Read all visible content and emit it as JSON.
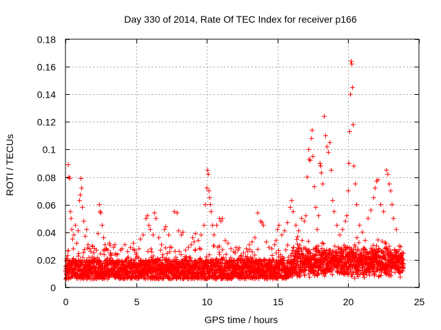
{
  "chart_data": {
    "type": "scatter",
    "title": "Day 330 of 2014, Rate Of TEC Index for receiver p166",
    "xlabel": "GPS time / hours",
    "ylabel": "ROTI / TECUs",
    "xlim": [
      0,
      25
    ],
    "ylim": [
      0,
      0.18
    ],
    "x_ticks": [
      0,
      5,
      10,
      15,
      20,
      25
    ],
    "x_tick_labels": [
      "0",
      "5",
      "10",
      "15",
      "20",
      "25"
    ],
    "y_ticks": [
      0,
      0.02,
      0.04,
      0.06,
      0.08,
      0.1,
      0.12,
      0.14,
      0.16,
      0.18
    ],
    "y_tick_labels": [
      "0",
      "0.02",
      "0.04",
      "0.06",
      "0.08",
      "0.1",
      "0.12",
      "0.14",
      "0.16",
      "0.18"
    ],
    "grid": true,
    "marker": "+",
    "color": "#ff0000",
    "x_data_range": [
      0,
      23.9
    ],
    "series": [
      {
        "name": "ROTI",
        "points": [
          [
            0.05,
            0.015
          ],
          [
            0.1,
            0.021
          ],
          [
            0.15,
            0.013
          ],
          [
            0.2,
            0.089
          ],
          [
            0.25,
            0.08
          ],
          [
            0.3,
            0.079
          ],
          [
            0.35,
            0.055
          ],
          [
            0.4,
            0.05
          ],
          [
            0.45,
            0.042
          ],
          [
            0.5,
            0.035
          ],
          [
            0.55,
            0.028
          ],
          [
            0.6,
            0.038
          ],
          [
            0.7,
            0.045
          ],
          [
            0.8,
            0.032
          ],
          [
            0.9,
            0.041
          ],
          [
            1.0,
            0.063
          ],
          [
            1.05,
            0.067
          ],
          [
            1.1,
            0.079
          ],
          [
            1.15,
            0.072
          ],
          [
            1.2,
            0.058
          ],
          [
            1.3,
            0.048
          ],
          [
            1.4,
            0.037
          ],
          [
            1.5,
            0.042
          ],
          [
            1.6,
            0.031
          ],
          [
            1.7,
            0.028
          ],
          [
            1.8,
            0.026
          ],
          [
            1.9,
            0.022
          ],
          [
            2.0,
            0.025
          ],
          [
            2.1,
            0.02
          ],
          [
            2.2,
            0.027
          ],
          [
            2.3,
            0.039
          ],
          [
            2.4,
            0.06
          ],
          [
            2.45,
            0.055
          ],
          [
            2.5,
            0.054
          ],
          [
            2.6,
            0.045
          ],
          [
            2.7,
            0.036
          ],
          [
            2.8,
            0.031
          ],
          [
            2.9,
            0.028
          ],
          [
            3.0,
            0.027
          ],
          [
            3.1,
            0.032
          ],
          [
            3.2,
            0.025
          ],
          [
            3.4,
            0.029
          ],
          [
            3.5,
            0.031
          ],
          [
            3.7,
            0.024
          ],
          [
            3.9,
            0.027
          ],
          [
            4.0,
            0.028
          ],
          [
            4.2,
            0.031
          ],
          [
            4.4,
            0.026
          ],
          [
            4.6,
            0.029
          ],
          [
            4.8,
            0.032
          ],
          [
            4.9,
            0.027
          ],
          [
            5.0,
            0.025
          ],
          [
            5.2,
            0.028
          ],
          [
            5.3,
            0.035
          ],
          [
            5.5,
            0.038
          ],
          [
            5.7,
            0.05
          ],
          [
            5.8,
            0.052
          ],
          [
            5.9,
            0.045
          ],
          [
            6.0,
            0.042
          ],
          [
            6.2,
            0.038
          ],
          [
            6.3,
            0.054
          ],
          [
            6.4,
            0.05
          ],
          [
            6.6,
            0.036
          ],
          [
            6.8,
            0.031
          ],
          [
            7.0,
            0.042
          ],
          [
            7.1,
            0.044
          ],
          [
            7.3,
            0.038
          ],
          [
            7.5,
            0.029
          ],
          [
            7.7,
            0.055
          ],
          [
            7.9,
            0.054
          ],
          [
            8.0,
            0.041
          ],
          [
            8.2,
            0.038
          ],
          [
            8.3,
            0.04
          ],
          [
            8.5,
            0.027
          ],
          [
            8.7,
            0.029
          ],
          [
            8.9,
            0.031
          ],
          [
            9.0,
            0.036
          ],
          [
            9.1,
            0.033
          ],
          [
            9.2,
            0.039
          ],
          [
            9.4,
            0.034
          ],
          [
            9.6,
            0.038
          ],
          [
            9.8,
            0.045
          ],
          [
            9.9,
            0.06
          ],
          [
            10.0,
            0.072
          ],
          [
            10.05,
            0.085
          ],
          [
            10.1,
            0.082
          ],
          [
            10.15,
            0.07
          ],
          [
            10.2,
            0.065
          ],
          [
            10.25,
            0.06
          ],
          [
            10.3,
            0.055
          ],
          [
            10.4,
            0.045
          ],
          [
            10.5,
            0.038
          ],
          [
            10.7,
            0.045
          ],
          [
            10.9,
            0.05
          ],
          [
            11.0,
            0.048
          ],
          [
            11.1,
            0.05
          ],
          [
            11.3,
            0.034
          ],
          [
            11.5,
            0.032
          ],
          [
            11.7,
            0.028
          ],
          [
            11.9,
            0.026
          ],
          [
            12.0,
            0.025
          ],
          [
            12.2,
            0.027
          ],
          [
            12.4,
            0.023
          ],
          [
            12.6,
            0.025
          ],
          [
            12.8,
            0.028
          ],
          [
            12.9,
            0.026
          ],
          [
            13.0,
            0.031
          ],
          [
            13.2,
            0.033
          ],
          [
            13.4,
            0.036
          ],
          [
            13.6,
            0.054
          ],
          [
            13.8,
            0.048
          ],
          [
            13.9,
            0.047
          ],
          [
            14.0,
            0.045
          ],
          [
            14.2,
            0.033
          ],
          [
            14.4,
            0.029
          ],
          [
            14.6,
            0.028
          ],
          [
            14.8,
            0.031
          ],
          [
            14.9,
            0.034
          ],
          [
            15.0,
            0.042
          ],
          [
            15.1,
            0.045
          ],
          [
            15.3,
            0.038
          ],
          [
            15.5,
            0.041
          ],
          [
            15.7,
            0.047
          ],
          [
            15.9,
            0.058
          ],
          [
            16.0,
            0.063
          ],
          [
            16.1,
            0.055
          ],
          [
            16.3,
            0.045
          ],
          [
            16.5,
            0.041
          ],
          [
            16.7,
            0.05
          ],
          [
            16.9,
            0.048
          ],
          [
            17.0,
            0.052
          ],
          [
            17.1,
            0.08
          ],
          [
            17.2,
            0.1
          ],
          [
            17.25,
            0.093
          ],
          [
            17.3,
            0.092
          ],
          [
            17.4,
            0.108
          ],
          [
            17.45,
            0.114
          ],
          [
            17.5,
            0.095
          ],
          [
            17.6,
            0.073
          ],
          [
            17.7,
            0.058
          ],
          [
            17.8,
            0.042
          ],
          [
            17.9,
            0.052
          ],
          [
            18.0,
            0.09
          ],
          [
            18.05,
            0.088
          ],
          [
            18.1,
            0.083
          ],
          [
            18.2,
            0.075
          ],
          [
            18.3,
            0.124
          ],
          [
            18.4,
            0.11
          ],
          [
            18.5,
            0.102
          ],
          [
            18.6,
            0.098
          ],
          [
            18.7,
            0.105
          ],
          [
            18.8,
            0.085
          ],
          [
            18.9,
            0.063
          ],
          [
            19.0,
            0.055
          ],
          [
            19.2,
            0.045
          ],
          [
            19.4,
            0.038
          ],
          [
            19.6,
            0.042
          ],
          [
            19.8,
            0.048
          ],
          [
            19.9,
            0.052
          ],
          [
            20.0,
            0.07
          ],
          [
            20.05,
            0.09
          ],
          [
            20.1,
            0.113
          ],
          [
            20.15,
            0.14
          ],
          [
            20.2,
            0.164
          ],
          [
            20.25,
            0.162
          ],
          [
            20.3,
            0.145
          ],
          [
            20.35,
            0.118
          ],
          [
            20.4,
            0.088
          ],
          [
            20.5,
            0.075
          ],
          [
            20.6,
            0.06
          ],
          [
            20.8,
            0.045
          ],
          [
            21.0,
            0.04
          ],
          [
            21.2,
            0.034
          ],
          [
            21.4,
            0.05
          ],
          [
            21.6,
            0.056
          ],
          [
            21.8,
            0.065
          ],
          [
            21.9,
            0.072
          ],
          [
            22.0,
            0.077
          ],
          [
            22.1,
            0.078
          ],
          [
            22.3,
            0.06
          ],
          [
            22.5,
            0.055
          ],
          [
            22.7,
            0.085
          ],
          [
            22.8,
            0.082
          ],
          [
            22.9,
            0.075
          ],
          [
            23.0,
            0.07
          ],
          [
            23.1,
            0.06
          ],
          [
            23.2,
            0.05
          ],
          [
            23.4,
            0.042
          ],
          [
            23.6,
            0.03
          ],
          [
            23.8,
            0.025
          ],
          [
            23.9,
            0.02
          ]
        ]
      }
    ]
  }
}
